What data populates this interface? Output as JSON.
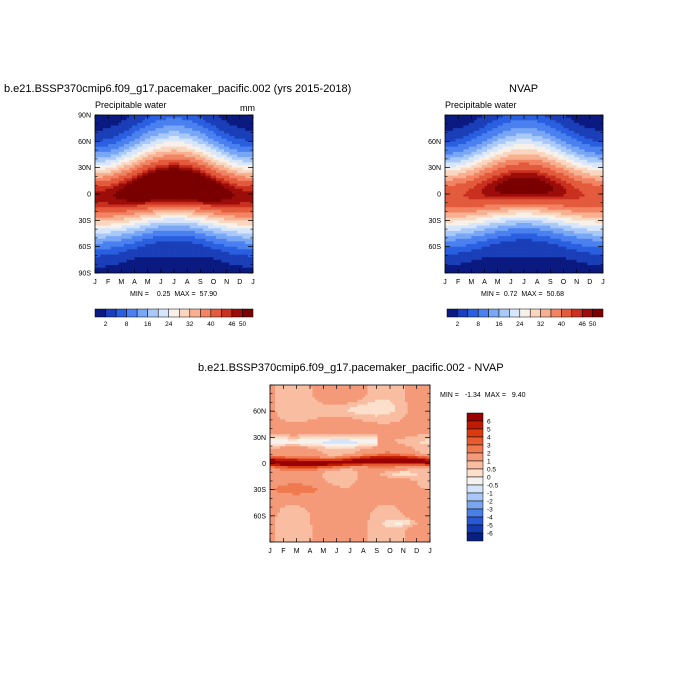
{
  "chart_data": [
    {
      "type": "heatmap",
      "title": "b.e21.BSSP370cmip6.f09_g17.pacemaker_pacific.002 (yrs 2015-2018)",
      "subtitle_left": "Precipitable water",
      "units": "mm",
      "x_ticks": [
        "J",
        "F",
        "M",
        "A",
        "M",
        "J",
        "J",
        "A",
        "S",
        "O",
        "N",
        "D",
        "J"
      ],
      "y_ticks": [
        "90N",
        "60N",
        "30N",
        "0",
        "30S",
        "60S",
        "90S"
      ],
      "y_tick_values": [
        90,
        60,
        30,
        0,
        -30,
        -60,
        -90
      ],
      "ylim": [
        -90,
        90
      ],
      "stats": {
        "min_label": "MIN =",
        "min": "0.25",
        "max_label": "MAX =",
        "max": "57.90"
      },
      "colorbar_labels": [
        "2",
        "8",
        "16",
        "24",
        "32",
        "40",
        "46",
        "50"
      ],
      "colorbar_colors": [
        "#0a1a80",
        "#1b3fb8",
        "#2a5fe0",
        "#4a80f0",
        "#79a6f5",
        "#a9c9f8",
        "#d7e6fb",
        "#f7f1ea",
        "#fbd6bf",
        "#f8b090",
        "#f28463",
        "#e35a3c",
        "#c9301f",
        "#9c0d0a",
        "#7a0000"
      ],
      "levels": [
        0,
        2,
        5,
        8,
        12,
        16,
        20,
        24,
        28,
        32,
        36,
        40,
        44,
        46,
        48,
        50,
        60
      ],
      "field": {
        "lat_points": [
          90,
          75,
          60,
          45,
          30,
          15,
          0,
          -15,
          -30,
          -45,
          -60,
          -75,
          -90
        ],
        "eq_value_jan": 47,
        "eq_value_jul": 55,
        "peak_lat_jan": -3,
        "peak_lat_jul": 8
      }
    },
    {
      "type": "heatmap",
      "title": "NVAP",
      "subtitle_left": "Precipitable water",
      "x_ticks": [
        "J",
        "F",
        "M",
        "A",
        "M",
        "J",
        "J",
        "A",
        "S",
        "O",
        "N",
        "D",
        "J"
      ],
      "y_ticks": [
        "60N",
        "30N",
        "0",
        "30S",
        "60S"
      ],
      "y_tick_values": [
        60,
        30,
        0,
        -30,
        -60
      ],
      "ylim": [
        -90,
        90
      ],
      "stats": {
        "min_label": "MIN =",
        "min": "0.72",
        "max_label": "MAX =",
        "max": "50.68"
      },
      "colorbar_labels": [
        "2",
        "8",
        "16",
        "24",
        "32",
        "40",
        "46",
        "50"
      ],
      "field": {
        "eq_value_jan": 43,
        "eq_value_jul": 50,
        "peak_lat_jan": -2,
        "peak_lat_jul": 8
      }
    },
    {
      "type": "heatmap",
      "title": "b.e21.BSSP370cmip6.f09_g17.pacemaker_pacific.002 - NVAP",
      "x_ticks": [
        "J",
        "F",
        "M",
        "A",
        "M",
        "J",
        "J",
        "A",
        "S",
        "O",
        "N",
        "D",
        "J"
      ],
      "y_ticks": [
        "60N",
        "30N",
        "0",
        "30S",
        "60S"
      ],
      "y_tick_values": [
        60,
        30,
        0,
        -30,
        -60
      ],
      "ylim": [
        -90,
        90
      ],
      "stats": {
        "min_label": "MIN =",
        "min": "-1.34",
        "max_label": "MAX =",
        "max": "9.40"
      },
      "colorbar_labels": [
        "6",
        "5",
        "4",
        "3",
        "2",
        "1",
        "0.5",
        "0",
        "-0.5",
        "-1",
        "-2",
        "-3",
        "-4",
        "-5",
        "-6"
      ],
      "colorbar_colors": [
        "#990000",
        "#c01a00",
        "#d93a10",
        "#e85a30",
        "#f07a50",
        "#f59a78",
        "#f9bda2",
        "#fde0cc",
        "#f5f2f0",
        "#d4e4fb",
        "#a9c8f7",
        "#7aa6f0",
        "#4a7fe6",
        "#2a58d4",
        "#143aae",
        "#081f80"
      ]
    }
  ]
}
